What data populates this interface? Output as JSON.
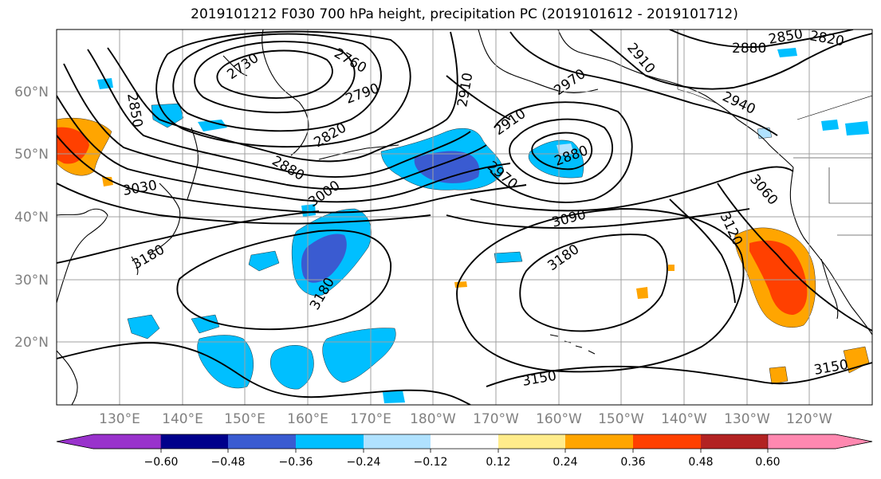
{
  "title": "2019101212 F030 700 hPa height, precipitation PC (2019101612 - 2019101712)",
  "map": {
    "lat_labels": [
      "60°N",
      "50°N",
      "40°N",
      "30°N",
      "20°N"
    ],
    "lon_labels": [
      "130°E",
      "140°E",
      "150°E",
      "160°E",
      "170°E",
      "180°W",
      "170°W",
      "160°W",
      "150°W",
      "140°W",
      "130°W",
      "120°W"
    ],
    "contour_labels": [
      "2730",
      "2760",
      "2790",
      "2820",
      "2850",
      "2850",
      "2820",
      "2880",
      "2880",
      "2880",
      "2910",
      "2910",
      "2910",
      "2940",
      "2970",
      "2970",
      "3000",
      "3030",
      "3060",
      "3090",
      "3120",
      "3150",
      "3150",
      "3180",
      "3180",
      "3180"
    ],
    "colors": {
      "coast": "#000000",
      "grid": "#a0a0a0",
      "contour": "#000000"
    }
  },
  "colorbar": {
    "colors": [
      "#9932cc",
      "#00008b",
      "#3a5bd1",
      "#00bfff",
      "#b0e2ff",
      "#ffffff",
      "#ffec8b",
      "#ffa500",
      "#ff4000",
      "#b22222",
      "#ff88b0"
    ],
    "tick_labels": [
      "−0.60",
      "−0.48",
      "−0.36",
      "−0.24",
      "−0.12",
      "0.12",
      "0.24",
      "0.36",
      "0.48",
      "0.60"
    ]
  }
}
